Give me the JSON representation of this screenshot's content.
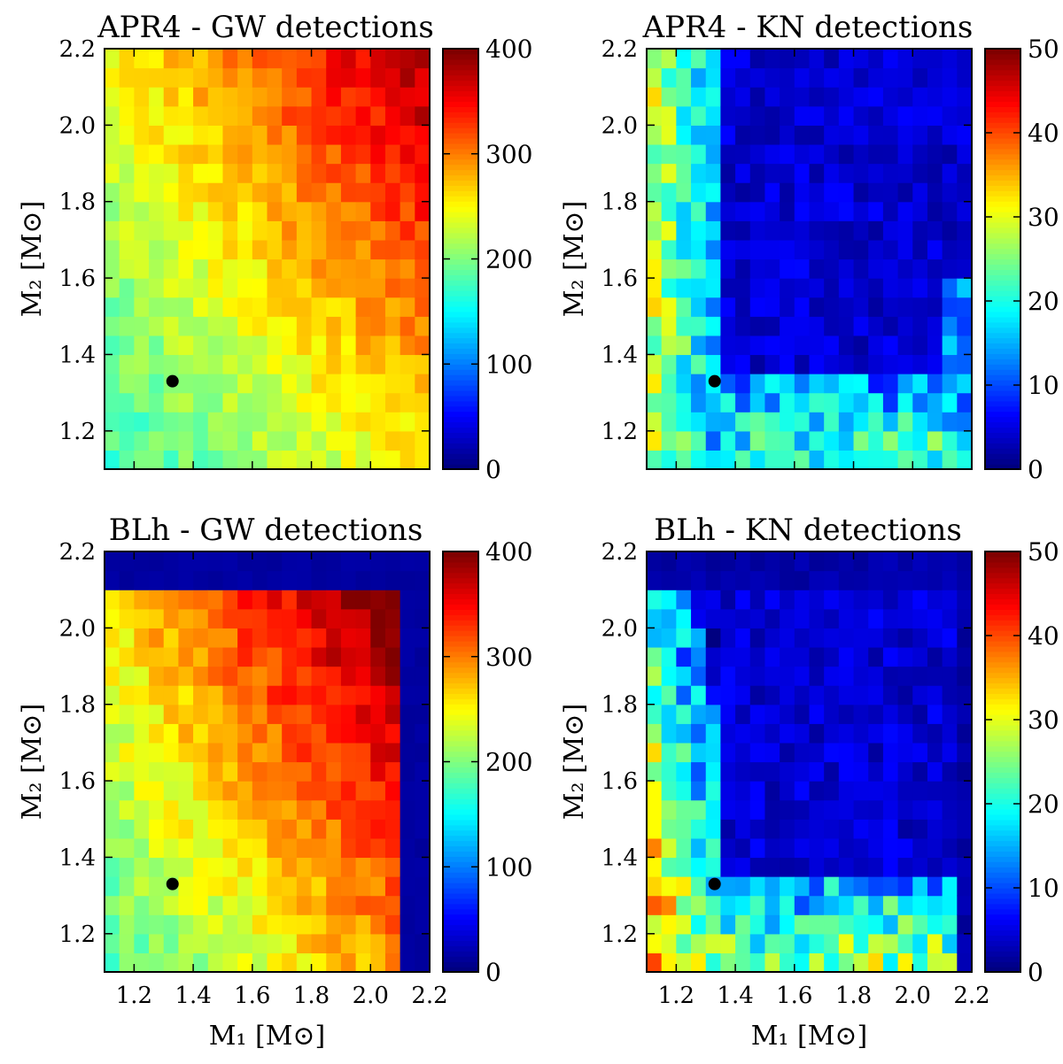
{
  "chart_data": [
    {
      "type": "heatmap",
      "title": "APR4 - GW detections",
      "xlabel": "M₁ [M⊙]",
      "ylabel": "M₂ [M⊙]",
      "xlim": [
        1.1,
        2.2
      ],
      "ylim": [
        1.1,
        2.2
      ],
      "x_ticks": [
        "1.2",
        "1.4",
        "1.6",
        "1.8",
        "2.0",
        "2.2"
      ],
      "y_ticks": [
        "1.2",
        "1.4",
        "1.6",
        "1.8",
        "2.0",
        "2.2"
      ],
      "show_x_tick_labels": false,
      "show_x_label": false,
      "colorbar": {
        "min": 0,
        "max": 400,
        "ticks": [
          "0",
          "100",
          "200",
          "300",
          "400"
        ]
      },
      "grid": {
        "nx": 22,
        "ny": 22,
        "cell": 0.05,
        "pattern": "apr4_gw"
      },
      "marker": {
        "x": 1.33,
        "y": 1.33
      }
    },
    {
      "type": "heatmap",
      "title": "APR4 - KN detections",
      "xlabel": "M₁ [M⊙]",
      "ylabel": "M₂ [M⊙]",
      "xlim": [
        1.1,
        2.2
      ],
      "ylim": [
        1.1,
        2.2
      ],
      "x_ticks": [
        "1.2",
        "1.4",
        "1.6",
        "1.8",
        "2.0",
        "2.2"
      ],
      "y_ticks": [
        "1.2",
        "1.4",
        "1.6",
        "1.8",
        "2.0",
        "2.2"
      ],
      "show_x_tick_labels": false,
      "show_x_label": false,
      "colorbar": {
        "min": 0,
        "max": 50,
        "ticks": [
          "0",
          "10",
          "20",
          "30",
          "40",
          "50"
        ]
      },
      "grid": {
        "nx": 22,
        "ny": 22,
        "cell": 0.05,
        "pattern": "apr4_kn"
      },
      "marker": {
        "x": 1.33,
        "y": 1.33
      }
    },
    {
      "type": "heatmap",
      "title": "BLh - GW detections",
      "xlabel": "M₁ [M⊙]",
      "ylabel": "M₂ [M⊙]",
      "xlim": [
        1.1,
        2.2
      ],
      "ylim": [
        1.1,
        2.2
      ],
      "x_ticks": [
        "1.2",
        "1.4",
        "1.6",
        "1.8",
        "2.0",
        "2.2"
      ],
      "y_ticks": [
        "1.2",
        "1.4",
        "1.6",
        "1.8",
        "2.0",
        "2.2"
      ],
      "show_x_tick_labels": true,
      "show_x_label": true,
      "colorbar": {
        "min": 0,
        "max": 400,
        "ticks": [
          "0",
          "100",
          "200",
          "300",
          "400"
        ]
      },
      "grid": {
        "nx": 22,
        "ny": 22,
        "cell": 0.05,
        "pattern": "blh_gw"
      },
      "marker": {
        "x": 1.33,
        "y": 1.33
      }
    },
    {
      "type": "heatmap",
      "title": "BLh - KN detections",
      "xlabel": "M₁ [M⊙]",
      "ylabel": "M₂ [M⊙]",
      "xlim": [
        1.1,
        2.2
      ],
      "ylim": [
        1.1,
        2.2
      ],
      "x_ticks": [
        "1.2",
        "1.4",
        "1.6",
        "1.8",
        "2.0",
        "2.2"
      ],
      "y_ticks": [
        "1.2",
        "1.4",
        "1.6",
        "1.8",
        "2.0",
        "2.2"
      ],
      "show_x_tick_labels": true,
      "show_x_label": true,
      "colorbar": {
        "min": 0,
        "max": 50,
        "ticks": [
          "0",
          "10",
          "20",
          "30",
          "40",
          "50"
        ]
      },
      "grid": {
        "nx": 22,
        "ny": 22,
        "cell": 0.05,
        "pattern": "blh_kn"
      },
      "marker": {
        "x": 1.33,
        "y": 1.33
      }
    }
  ]
}
